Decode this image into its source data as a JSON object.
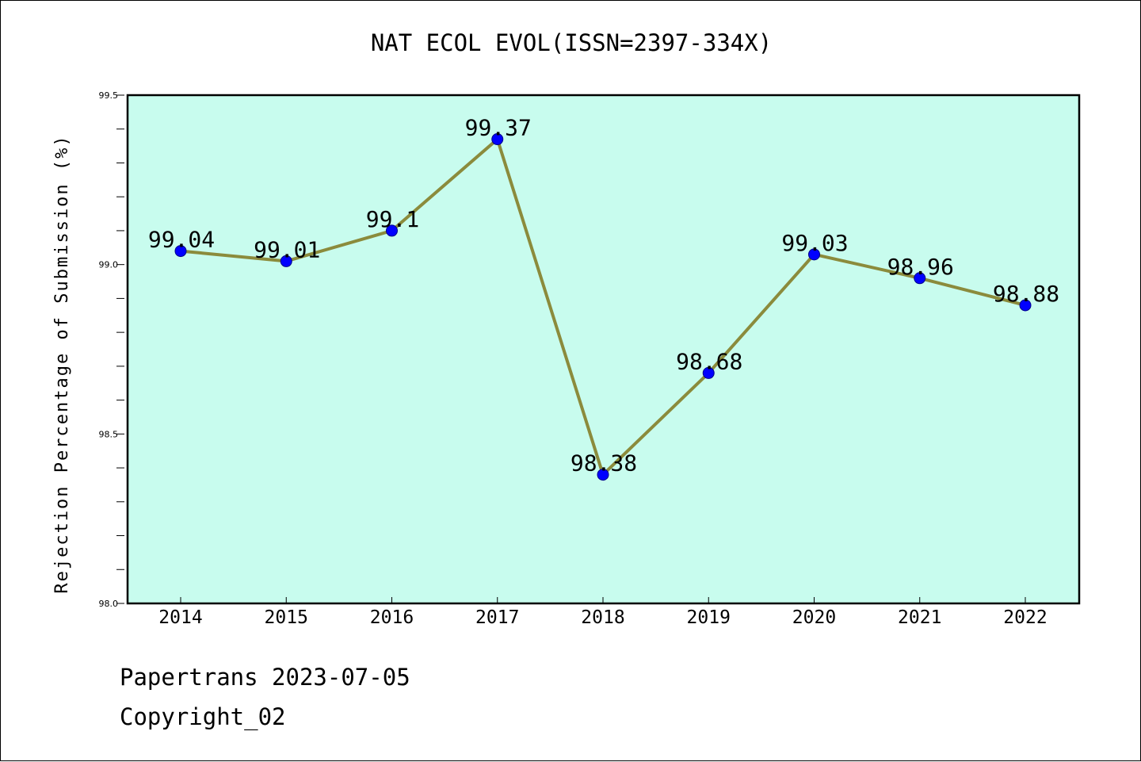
{
  "chart_data": {
    "type": "line",
    "title": "NAT ECOL EVOL(ISSN=2397-334X)",
    "xlabel": "",
    "ylabel": "Rejection Percentage of Submission (%)",
    "categories": [
      "2014",
      "2015",
      "2016",
      "2017",
      "2018",
      "2019",
      "2020",
      "2021",
      "2022"
    ],
    "values": [
      99.04,
      99.01,
      99.1,
      99.37,
      98.38,
      98.68,
      99.03,
      98.96,
      98.88
    ],
    "data_labels": [
      "99.04",
      "99.01",
      "99.1",
      "99.37",
      "98.38",
      "98.68",
      "99.03",
      "98.96",
      "98.88"
    ],
    "ylim": [
      98.0,
      99.5
    ],
    "yticks": [
      "98.0",
      "98.5",
      "99.0",
      "99.5"
    ],
    "grid": false,
    "colors": {
      "plot_background": "#c8fcee",
      "line": "#8b8b3c",
      "marker": "#0000ff"
    }
  },
  "footer": {
    "line1": "Papertrans 2023-07-05",
    "line2": "Copyright_02"
  }
}
